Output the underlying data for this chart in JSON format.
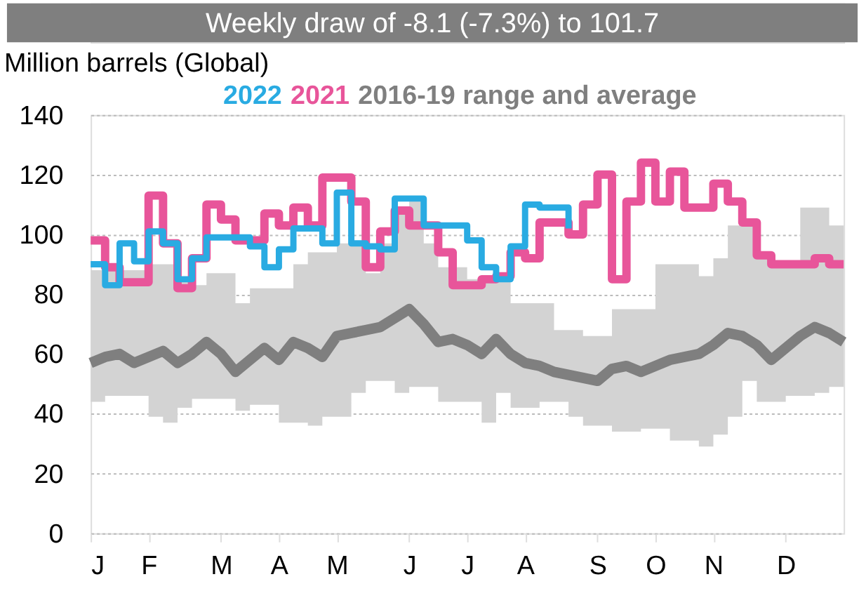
{
  "chart_data": {
    "type": "step",
    "title": "Weekly draw of -8.1 (-7.3%) to 101.7",
    "ylabel": "Million barrels (Global)",
    "categories": [
      "J",
      null,
      null,
      null,
      "F",
      null,
      null,
      null,
      null,
      "M",
      null,
      null,
      null,
      "A",
      null,
      null,
      null,
      "M",
      null,
      null,
      null,
      null,
      "J",
      null,
      null,
      null,
      "J",
      null,
      null,
      null,
      "A",
      null,
      null,
      null,
      null,
      "S",
      null,
      null,
      null,
      "O",
      null,
      null,
      null,
      "N",
      null,
      null,
      null,
      null,
      "D",
      null,
      null,
      null,
      null
    ],
    "ylim": [
      0,
      140
    ],
    "yticks": [
      0,
      20,
      40,
      60,
      80,
      100,
      120,
      140
    ],
    "grid": "y",
    "legend": "top",
    "series": [
      {
        "name": "2016-19 range and average",
        "type": "line",
        "color": "#7f7f7f",
        "values": [
          57,
          59,
          60,
          57,
          59,
          61,
          57,
          60,
          64,
          60,
          54,
          58,
          62,
          58,
          64,
          62,
          59,
          66,
          67,
          68,
          69,
          72,
          75,
          70,
          64,
          65,
          63,
          60,
          65,
          60,
          57,
          56,
          54,
          53,
          52,
          51,
          55,
          56,
          54,
          56,
          58,
          59,
          60,
          63,
          67,
          66,
          63,
          58,
          62,
          66,
          69,
          67,
          64
        ],
        "lower": [
          44,
          46,
          46,
          46,
          39,
          37,
          42,
          45,
          45,
          45,
          41,
          43,
          43,
          37,
          37,
          36,
          39,
          39,
          47,
          51,
          51,
          47,
          49,
          49,
          44,
          44,
          44,
          37,
          47,
          42,
          42,
          44,
          44,
          39,
          36,
          36,
          34,
          34,
          35,
          35,
          31,
          31,
          29,
          33,
          39,
          51,
          44,
          44,
          46,
          46,
          47,
          49,
          49
        ],
        "upper": [
          88,
          88,
          88,
          88,
          90,
          90,
          85,
          83,
          87,
          87,
          77,
          82,
          82,
          82,
          90,
          94,
          94,
          97,
          97,
          87,
          97,
          109,
          112,
          97,
          89,
          89,
          85,
          85,
          85,
          77,
          77,
          77,
          68,
          68,
          66,
          66,
          75,
          75,
          75,
          90,
          90,
          90,
          86,
          92,
          103,
          103,
          92,
          90,
          90,
          109,
          109,
          103,
          82
        ]
      },
      {
        "name": "2021",
        "type": "step",
        "color": "#e8559a",
        "values": [
          98,
          89,
          84,
          84,
          113,
          97,
          82,
          92,
          110,
          105,
          98,
          98,
          107,
          103,
          109,
          103,
          119,
          119,
          111,
          89,
          101,
          108,
          103,
          103,
          94,
          83,
          83,
          85,
          86,
          94,
          92,
          104,
          104,
          100,
          110,
          120,
          85,
          111,
          124,
          111,
          121,
          109,
          109,
          117,
          111,
          104,
          93,
          90,
          90,
          90,
          92,
          90,
          90
        ]
      },
      {
        "name": "2022",
        "type": "step",
        "color": "#29abe2",
        "values": [
          90,
          83,
          97,
          91,
          101,
          97,
          85,
          92,
          99,
          99,
          99,
          96,
          89,
          95,
          102,
          102,
          97,
          114,
          97,
          96,
          95,
          112,
          112,
          103,
          103,
          103,
          98,
          89,
          85,
          96,
          110,
          109,
          109,
          102,
          null,
          null,
          null,
          null,
          null,
          null,
          null,
          null,
          null,
          null,
          null,
          null,
          null,
          null,
          null,
          null,
          null,
          null,
          null
        ]
      }
    ]
  }
}
